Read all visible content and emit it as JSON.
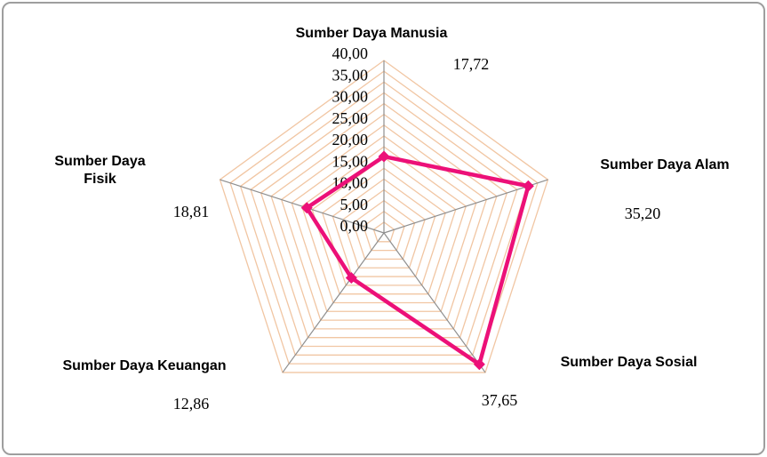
{
  "figure": {
    "background": "#ffffff",
    "border_color": "#9e9e9e"
  },
  "chart_data": {
    "type": "radar",
    "title": "",
    "categories": [
      "Sumber Daya Manusia",
      "Sumber Daya Alam",
      "Sumber Daya Sosial",
      "Sumber Daya Keuangan",
      "Sumber Daya Fisik"
    ],
    "values": [
      17.72,
      35.2,
      37.65,
      12.86,
      18.81
    ],
    "value_labels": [
      "17,72",
      "35,20",
      "37,65",
      "12,86",
      "18,81"
    ],
    "r_axis": {
      "min": 0,
      "max": 40,
      "tick_step": 5,
      "tick_labels": [
        "40,00",
        "35,00",
        "30,00",
        "25,00",
        "20,00",
        "15,00",
        "10,00",
        "5,00",
        "0,00"
      ],
      "grid_step": 2.5
    },
    "style": {
      "series_color": "#ec1078",
      "grid_color": "#f1c6a3",
      "axis_color": "#8f8f8f"
    },
    "grid": true,
    "legend": "none"
  }
}
